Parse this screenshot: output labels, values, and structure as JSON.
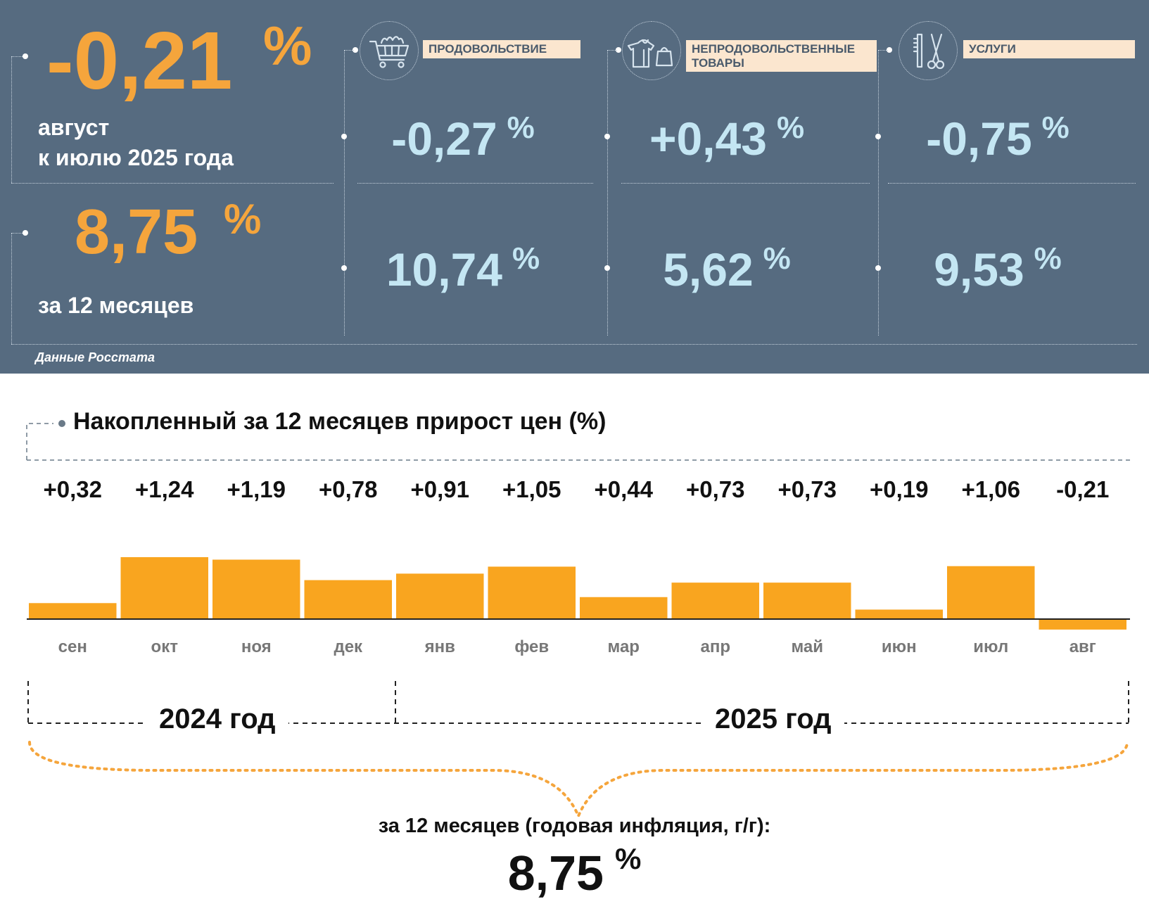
{
  "headline": {
    "monthly_value": "-0,21",
    "monthly_unit": "%",
    "monthly_caption_1": "август",
    "monthly_caption_2": "к июлю 2025 года",
    "annual_value": "8,75",
    "annual_unit": "%",
    "annual_caption": "за 12 месяцев"
  },
  "categories": [
    {
      "label": "ПРОДОВОЛЬСТВИЕ",
      "icon": "shopping-cart-icon",
      "monthly": "-0,27",
      "annual": "10,74",
      "unit": "%"
    },
    {
      "label": "НЕПРОДОВОЛЬСТВЕННЫЕ ТОВАРЫ",
      "icon": "clothes-bag-icon",
      "monthly": "+0,43",
      "annual": "5,62",
      "unit": "%"
    },
    {
      "label": "УСЛУГИ",
      "icon": "comb-scissors-icon",
      "monthly": "-0,75",
      "annual": "9,53",
      "unit": "%"
    }
  ],
  "source": "Данные Росстата",
  "colors": {
    "panel_bg": "#566b80",
    "accent_orange": "#f5a53c",
    "value_light": "#c4e6f3",
    "bar": "#f9a51f",
    "label_bg": "#fbe6cf"
  },
  "chart_data": {
    "type": "bar",
    "title": "Накопленный за 12 месяцев прирост цен (%)",
    "categories": [
      "сен",
      "окт",
      "ноя",
      "дек",
      "янв",
      "фев",
      "мар",
      "апр",
      "май",
      "июн",
      "июл",
      "авг"
    ],
    "values": [
      0.32,
      1.24,
      1.19,
      0.78,
      0.91,
      1.05,
      0.44,
      0.73,
      0.73,
      0.19,
      1.06,
      -0.21
    ],
    "value_labels": [
      "+0,32",
      "+1,24",
      "+1,19",
      "+0,78",
      "+0,91",
      "+1,05",
      "+0,44",
      "+0,73",
      "+0,73",
      "+0,19",
      "+1,06",
      "-0,21"
    ],
    "groups": [
      {
        "label": "2024 год",
        "months": [
          "сен",
          "окт",
          "ноя",
          "дек"
        ]
      },
      {
        "label": "2025 год",
        "months": [
          "янв",
          "фев",
          "мар",
          "апр",
          "май",
          "июн",
          "июл",
          "авг"
        ]
      }
    ],
    "summary_caption": "за 12 месяцев (годовая инфляция, г/г):",
    "summary_value": "8,75",
    "summary_unit": "%",
    "ylim": [
      -0.21,
      1.24
    ],
    "grid": false,
    "legend": "none"
  }
}
